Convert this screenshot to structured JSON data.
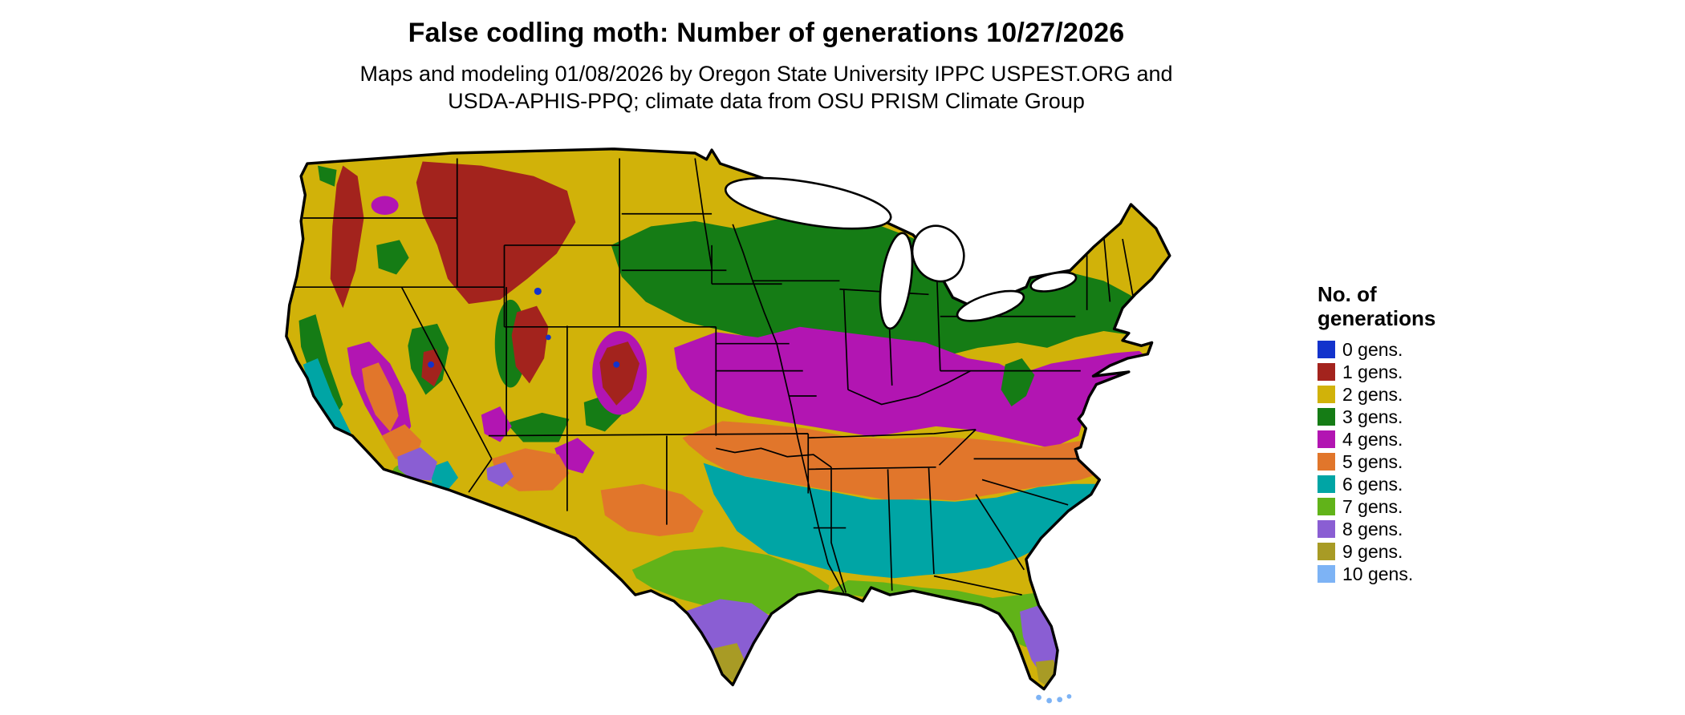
{
  "title": "False codling moth: Number of generations 10/27/2026",
  "subtitle": {
    "line1": "Maps and modeling 01/08/2026 by Oregon State University IPPC USPEST.ORG and",
    "line2": "USDA-APHIS-PPQ; climate data from OSU PRISM Climate Group"
  },
  "legend": {
    "title_line1": "No. of",
    "title_line2": "generations",
    "items": [
      {
        "gens": 0,
        "label": "0 gens.",
        "color": "#1333cc"
      },
      {
        "gens": 1,
        "label": "1 gens.",
        "color": "#a3231d"
      },
      {
        "gens": 2,
        "label": "2 gens.",
        "color": "#d1b209"
      },
      {
        "gens": 3,
        "label": "3 gens.",
        "color": "#157c15"
      },
      {
        "gens": 4,
        "label": "4 gens.",
        "color": "#b215b2"
      },
      {
        "gens": 5,
        "label": "5 gens.",
        "color": "#e1762b"
      },
      {
        "gens": 6,
        "label": "6 gens.",
        "color": "#00a5a5"
      },
      {
        "gens": 7,
        "label": "7 gens.",
        "color": "#61b319"
      },
      {
        "gens": 8,
        "label": "8 gens.",
        "color": "#8a5ed3"
      },
      {
        "gens": 9,
        "label": "9 gens.",
        "color": "#a89b25"
      },
      {
        "gens": 10,
        "label": "10 gens.",
        "color": "#7db3f5"
      }
    ]
  },
  "map": {
    "region": "Contiguous United States",
    "outline_color": "#000000",
    "water_color": "#ffffff",
    "pattern_note": "Number of generations increases from north to south",
    "bands_north_to_south": [
      2,
      3,
      4,
      5,
      6,
      7,
      8,
      9,
      10
    ]
  }
}
